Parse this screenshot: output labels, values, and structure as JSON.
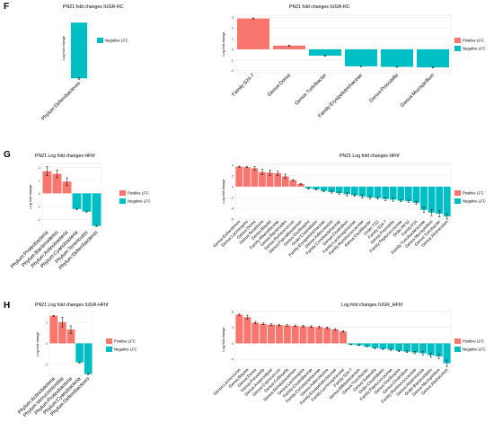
{
  "colors": {
    "positive": "#F8766D",
    "negative": "#00BFC4",
    "grid": "#EBEBEB",
    "axis": "#333333"
  },
  "panels": [
    {
      "letter": "F",
      "label_y": 2
    },
    {
      "letter": "G",
      "label_y": 167
    },
    {
      "letter": "H",
      "label_y": 335
    }
  ],
  "chart_data": [
    {
      "panel": "F",
      "type": "bar",
      "title": "PN21 fold changes IUGR-RC",
      "ylabel": "Log fold change",
      "categories": [
        "Phylum:Deferribacteres"
      ],
      "values": [
        -2.3
      ],
      "errors": [
        0.04
      ],
      "ylim": [
        -2.4,
        0.3
      ],
      "yticks": [],
      "legend": [
        "Negative LFC"
      ],
      "grid": true
    },
    {
      "panel": "F",
      "type": "bar",
      "title": "PN21 fold changes IUGR-RC",
      "ylabel": "Log fold change",
      "categories": [
        "Family:S24-7",
        "Genus:Dorea",
        "Genus:Turicibacter",
        "Family:Erysipelotrichaceae",
        "Genus:Prevotella",
        "Genus:Mucispirillum"
      ],
      "values": [
        2.9,
        0.35,
        -0.6,
        -1.6,
        -1.65,
        -1.7
      ],
      "errors": [
        0.05,
        0.04,
        0.06,
        0.03,
        0.03,
        0.04
      ],
      "ylim": [
        -2.2,
        3.2
      ],
      "yticks": [
        -2,
        -1,
        0,
        1,
        2,
        3
      ],
      "legend": [
        "Positive LFC",
        "Negative LFC"
      ],
      "grid": true
    },
    {
      "panel": "G",
      "type": "bar",
      "title": "PN21 Log fold changes HFhf",
      "ylabel": "Log fold change",
      "categories": [
        "Phylum:Proteobacteria",
        "Phylum:Bacteroidetes",
        "Phylum:Actinobacteria",
        "Phylum:Cyanobacteria",
        "Phylum:Tenericutes",
        "Phylum:Deferribacteres"
      ],
      "values": [
        1.7,
        1.5,
        0.9,
        -1.2,
        -1.4,
        -2.5
      ],
      "errors": [
        0.35,
        0.3,
        0.3,
        0.05,
        0.05,
        0.05
      ],
      "ylim": [
        -2.8,
        2.3
      ],
      "yticks": [
        -2,
        -1,
        0,
        1,
        2
      ],
      "legend": [
        "Positive LFC",
        "Negative LFC"
      ],
      "grid": true
    },
    {
      "panel": "G",
      "type": "bar",
      "title": "PN21 Log fold changes HFhf",
      "ylabel": "Log fold change",
      "categories": [
        "Genus:Eubacterium",
        "Genus:Lachnospira",
        "Genus:Dorea",
        "Genus:Roseburia",
        "Genus:Blautia",
        "Family:Rikenellaceae",
        "Genus:Bacteroides",
        "Genus:Ruminococcus",
        "Genus:Faecalibacterium",
        "Genus:Oscillospira",
        "Order:Clostridiales",
        "Family:Erysipelotrichaceae",
        "Genus:Adlercreutzia",
        "Family:Coriobacteriaceae",
        "Genus:Clostridium",
        "Family:Lachnospiraceae",
        "Family:Ruminococcaceae",
        "Genus:Oscillibacter",
        "Order:YS2",
        "Family:S24-7",
        "Genus:Prevotella",
        "Family:Peptococcaceae",
        "Order:RF32",
        "Family:F16",
        "Family:Turicibacteraceae",
        "Genus:Mucispirillum",
        "Genus:Turicibacter",
        "Genus:Allobaculum"
      ],
      "values": [
        3.7,
        3.6,
        3.4,
        2.7,
        2.6,
        2.5,
        1.9,
        1.2,
        0.5,
        -0.3,
        -0.5,
        -0.8,
        -1.0,
        -1.2,
        -1.4,
        -1.6,
        -1.8,
        -2.0,
        -2.1,
        -2.3,
        -2.4,
        -2.6,
        -2.7,
        -3.0,
        -4.3,
        -4.8,
        -5.0,
        -5.5
      ],
      "errors": [
        0.1,
        0.1,
        0.3,
        0.5,
        0.5,
        0.4,
        0.4,
        0.1,
        0.1,
        0.1,
        0.1,
        0.1,
        0.2,
        0.2,
        0.3,
        0.2,
        0.3,
        0.3,
        0.2,
        0.3,
        0.3,
        0.2,
        0.2,
        0.3,
        0.5,
        0.6,
        0.6,
        0.5
      ],
      "ylim": [
        -6,
        4.3
      ],
      "yticks": [
        -6,
        -4,
        -2,
        0,
        2,
        4
      ],
      "legend": [
        "Positive LFC",
        "Negative LFC"
      ],
      "grid": true
    },
    {
      "panel": "H",
      "type": "bar",
      "title": "PN21 Log fold changes IUGR-HFhf",
      "ylabel": "Log fold change",
      "categories": [
        "Phylum:Actinobacteria",
        "Phylum:Verrucomicrobia",
        "Phylum:Proteobacteria",
        "Phylum:Cyanobacteria",
        "Phylum:Deferribacteres"
      ],
      "values": [
        2.6,
        2.0,
        1.3,
        -1.8,
        -2.9
      ],
      "errors": [
        0.05,
        0.45,
        0.35,
        0.05,
        0.05
      ],
      "ylim": [
        -3.1,
        3.0
      ],
      "yticks": [
        -2,
        0,
        2
      ],
      "legend": [
        "Positive LFC",
        "Negative LFC"
      ],
      "grid": true
    },
    {
      "panel": "H",
      "type": "bar",
      "title": "Log fold changes IUGR_HFhf",
      "ylabel": "Log fold change",
      "categories": [
        "Genus:Lactococcus",
        "Genus:Blautia",
        "Genus:Dorea",
        "Genus:Prevotella",
        "Genus:Anaerostipes",
        "Genus:Coprococcus",
        "Genus:Collinsella",
        "Genus:Dehalobacterium",
        "Genus:Lachnospira",
        "Family:Clostridiaceae",
        "Family:Coriobacteriaceae",
        "Genus:Adlercreutzia",
        "Family:Erysipelotrichaceae",
        "Family:Lachnospiraceae",
        "Family:S24-7",
        "Genus:Bifidobacterium",
        "Genus:Turicibacter",
        "Genus:Sutterella",
        "Order:Clostridiales",
        "Family:Peptococcaceae",
        "Genus:Oscillospira",
        "Genus:Clostridium",
        "Family:Ruminococcaceae",
        "Genus:Akkermansia",
        "Order:Bacteroidales",
        "Genus:Mucispirillum",
        "Genus:Allobaculum"
      ],
      "values": [
        7.2,
        6.6,
        5.2,
        4.9,
        4.7,
        4.6,
        4.5,
        4.4,
        4.3,
        4.2,
        4.1,
        3.9,
        3.5,
        3.0,
        -0.3,
        -0.5,
        -0.8,
        -1.2,
        -1.4,
        -1.6,
        -1.9,
        -2.1,
        -2.3,
        -2.5,
        -3.0,
        -3.3,
        -5.0
      ],
      "errors": [
        0.2,
        0.5,
        0.3,
        0.2,
        0.2,
        0.2,
        0.2,
        0.2,
        0.2,
        0.2,
        0.2,
        0.2,
        0.2,
        0.2,
        0.05,
        0.05,
        0.05,
        0.1,
        0.1,
        0.2,
        0.2,
        0.2,
        0.3,
        0.4,
        0.5,
        0.5,
        0.8
      ],
      "ylim": [
        -6,
        8
      ],
      "yticks": [
        -4,
        0,
        4,
        8
      ],
      "legend": [
        "Positive LFC",
        "Negative LFC"
      ],
      "grid": true
    }
  ]
}
